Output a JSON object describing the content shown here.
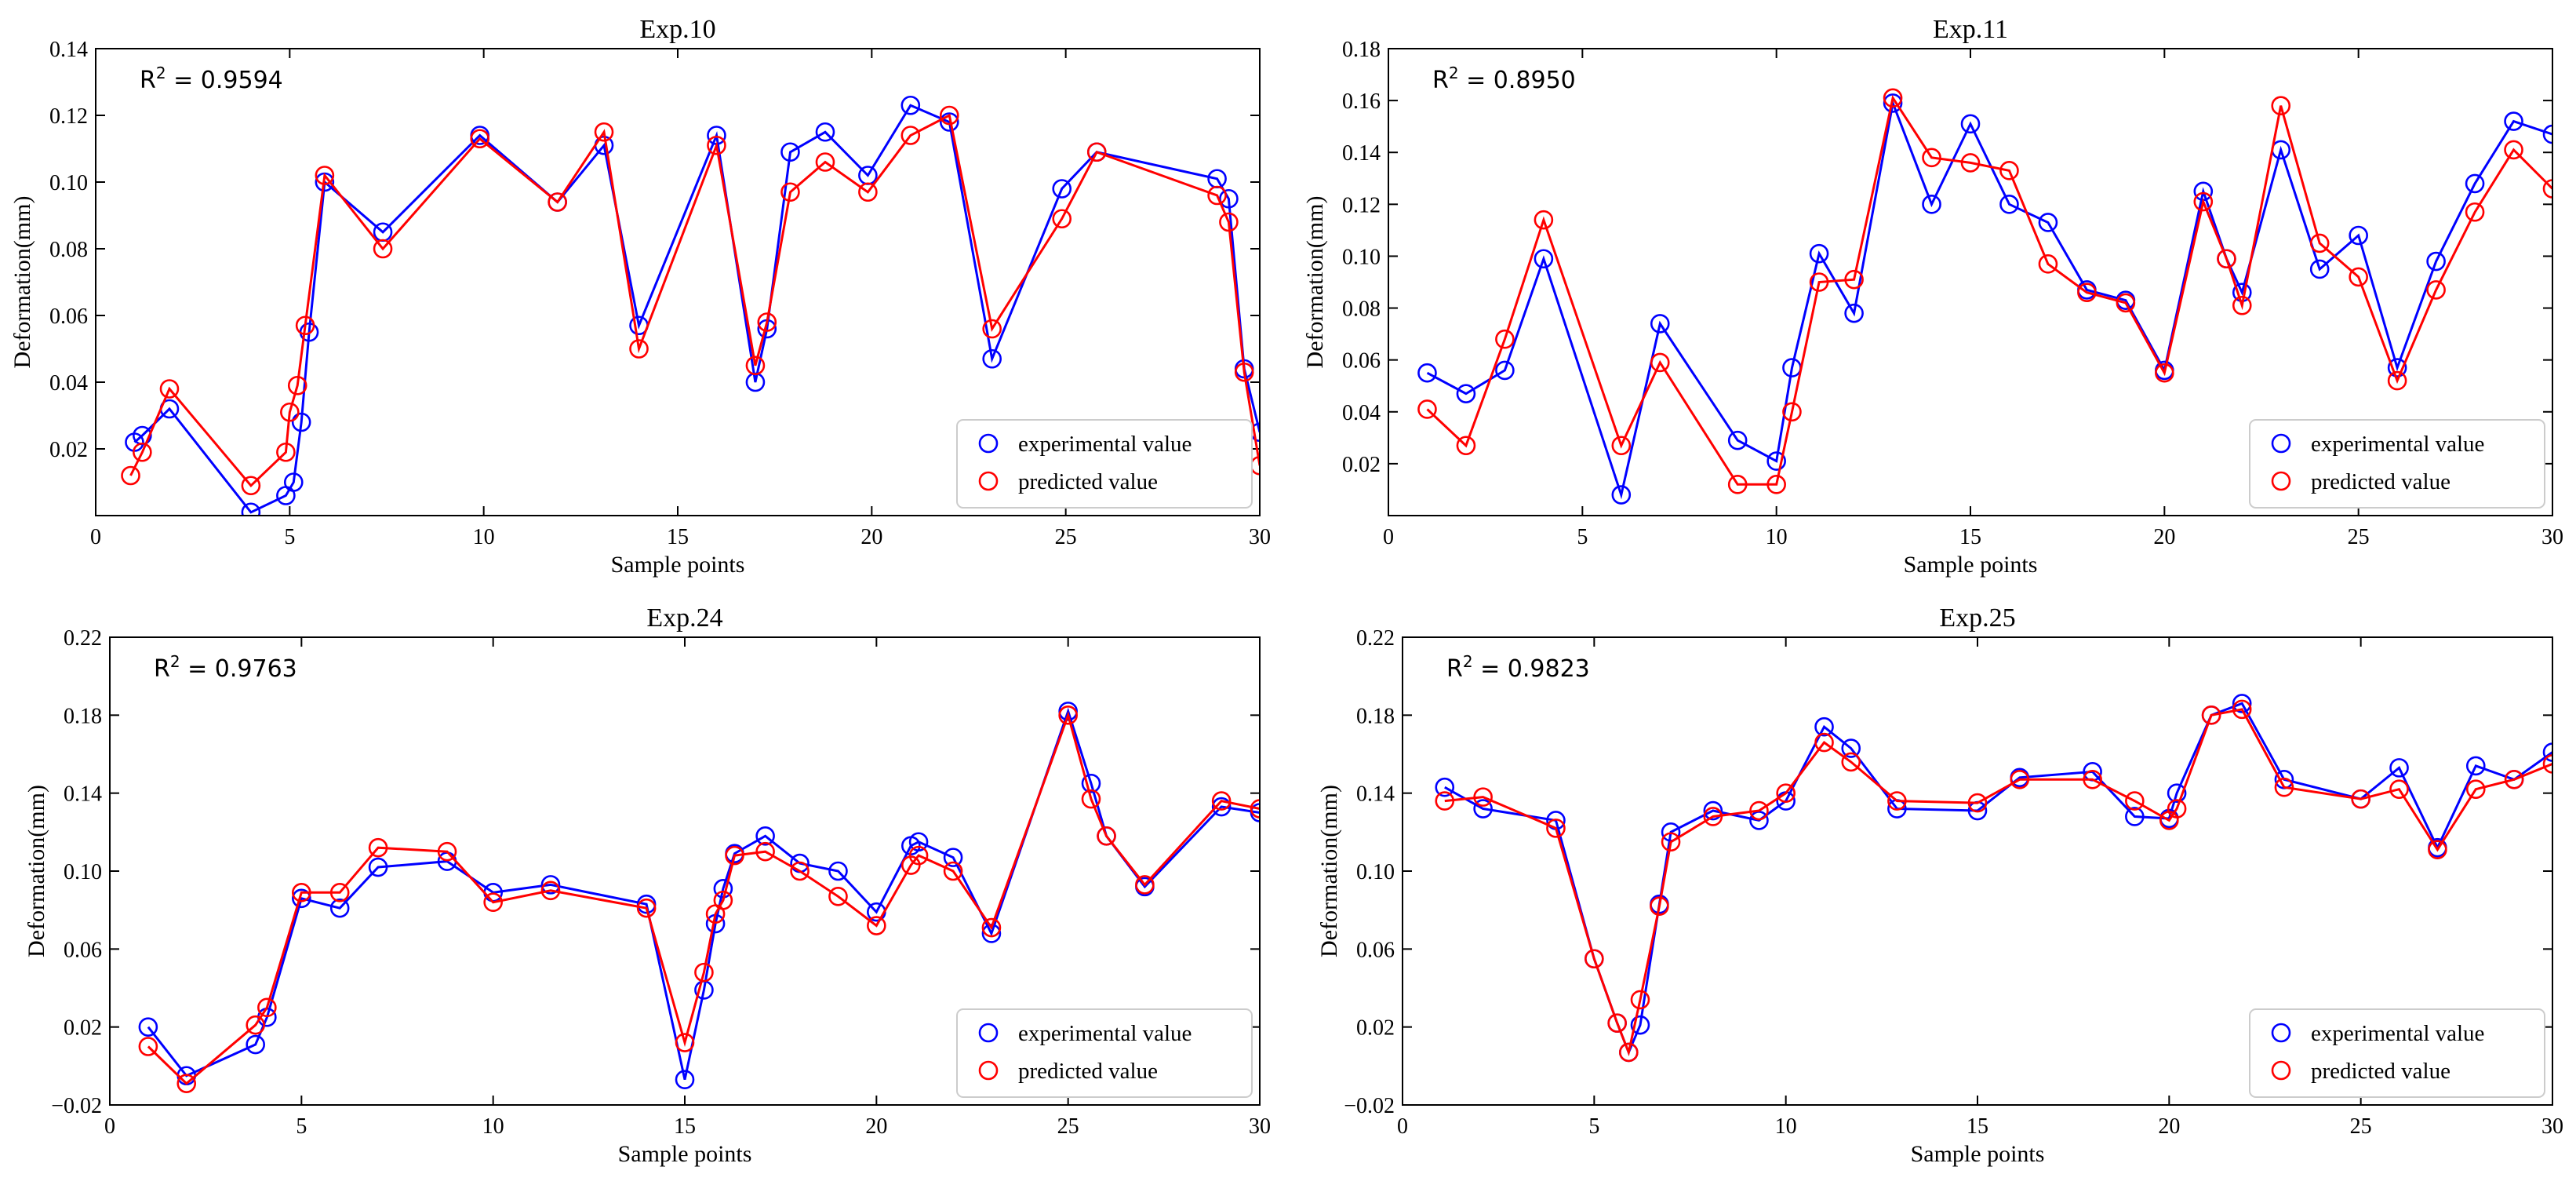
{
  "chart_data": [
    {
      "type": "line",
      "title": "Exp.10",
      "xlabel": "Sample points",
      "ylabel": "Deformation(mm)",
      "annotation_prefix": "R",
      "annotation_value": " = 0.9594",
      "xlim": [
        0,
        30
      ],
      "ylim": [
        0.0,
        0.14
      ],
      "xticks": [
        "0",
        "5",
        "10",
        "15",
        "20",
        "25",
        "30"
      ],
      "yticks": [
        "0.02",
        "0.04",
        "0.06",
        "0.08",
        "0.10",
        "0.12",
        "0.14"
      ],
      "legend_position": "bottom-right",
      "series": [
        {
          "name": "experimental value",
          "color": "#0000ff",
          "x": [
            1.0,
            1.2,
            1.9,
            4.0,
            4.9,
            5.1,
            5.3,
            5.5,
            5.9,
            7.4,
            9.9,
            11.9,
            13.1,
            14.0,
            16.0,
            17.0,
            17.3,
            17.9,
            18.8,
            19.9,
            21.0,
            22.0,
            23.1,
            24.9,
            25.8,
            28.9,
            29.2,
            29.6,
            30.0
          ],
          "y": [
            0.022,
            0.024,
            0.032,
            0.001,
            0.006,
            0.01,
            0.028,
            0.055,
            0.1,
            0.085,
            0.114,
            0.094,
            0.111,
            0.057,
            0.114,
            0.04,
            0.056,
            0.109,
            0.115,
            0.102,
            0.123,
            0.118,
            0.047,
            0.098,
            0.109,
            0.101,
            0.095,
            0.044,
            0.025
          ]
        },
        {
          "name": "predicted value",
          "color": "#ff0000",
          "x": [
            0.9,
            1.2,
            1.9,
            4.0,
            4.9,
            5.0,
            5.2,
            5.4,
            5.9,
            7.4,
            9.9,
            11.9,
            13.1,
            14.0,
            16.0,
            17.0,
            17.3,
            17.9,
            18.8,
            19.9,
            21.0,
            22.0,
            23.1,
            24.9,
            25.8,
            28.9,
            29.2,
            29.6,
            30.0
          ],
          "y": [
            0.012,
            0.019,
            0.038,
            0.009,
            0.019,
            0.031,
            0.039,
            0.057,
            0.102,
            0.08,
            0.113,
            0.094,
            0.115,
            0.05,
            0.111,
            0.045,
            0.058,
            0.097,
            0.106,
            0.097,
            0.114,
            0.12,
            0.056,
            0.089,
            0.109,
            0.096,
            0.088,
            0.043,
            0.015
          ]
        }
      ]
    },
    {
      "type": "line",
      "title": "Exp.11",
      "xlabel": "Sample points",
      "ylabel": "Deformation(mm)",
      "annotation_prefix": "R",
      "annotation_value": " = 0.8950",
      "xlim": [
        0,
        30
      ],
      "ylim": [
        0.0,
        0.18
      ],
      "xticks": [
        "0",
        "5",
        "10",
        "15",
        "20",
        "25",
        "30"
      ],
      "yticks": [
        "0.02",
        "0.04",
        "0.06",
        "0.08",
        "0.10",
        "0.12",
        "0.14",
        "0.16",
        "0.18"
      ],
      "legend_position": "bottom-right",
      "series": [
        {
          "name": "experimental value",
          "color": "#0000ff",
          "x": [
            1,
            2,
            3,
            4,
            6,
            7,
            9,
            10,
            10.4,
            11.1,
            12,
            13,
            14,
            15,
            16,
            17,
            18,
            19,
            20,
            21,
            21.6,
            22,
            23,
            24,
            25,
            26,
            27,
            28,
            29,
            30
          ],
          "y": [
            0.055,
            0.047,
            0.056,
            0.099,
            0.008,
            0.074,
            0.029,
            0.021,
            0.057,
            0.101,
            0.078,
            0.159,
            0.12,
            0.151,
            0.12,
            0.113,
            0.087,
            0.083,
            0.056,
            0.125,
            0.099,
            0.086,
            0.141,
            0.095,
            0.108,
            0.057,
            0.098,
            0.128,
            0.152,
            0.147
          ]
        },
        {
          "name": "predicted value",
          "color": "#ff0000",
          "x": [
            1,
            2,
            3,
            4,
            6,
            7,
            9,
            10,
            10.4,
            11.1,
            12,
            13,
            14,
            15,
            16,
            17,
            18,
            19,
            20,
            21,
            21.6,
            22,
            23,
            24,
            25,
            26,
            27,
            28,
            29,
            30
          ],
          "y": [
            0.041,
            0.027,
            0.068,
            0.114,
            0.027,
            0.059,
            0.012,
            0.012,
            0.04,
            0.09,
            0.091,
            0.161,
            0.138,
            0.136,
            0.133,
            0.097,
            0.086,
            0.082,
            0.055,
            0.121,
            0.099,
            0.081,
            0.158,
            0.105,
            0.092,
            0.052,
            0.087,
            0.117,
            0.141,
            0.126
          ]
        }
      ]
    },
    {
      "type": "line",
      "title": "Exp.24",
      "xlabel": "Sample points",
      "ylabel": "Deformation(mm)",
      "annotation_prefix": "R",
      "annotation_value": " = 0.9763",
      "xlim": [
        0,
        30
      ],
      "ylim": [
        -0.02,
        0.22
      ],
      "xticks": [
        "0",
        "5",
        "10",
        "15",
        "20",
        "25",
        "30"
      ],
      "yticks": [
        "−0.02",
        "0.02",
        "0.06",
        "0.10",
        "0.14",
        "0.18",
        "0.22"
      ],
      "legend_position": "bottom-right",
      "series": [
        {
          "name": "experimental value",
          "color": "#0000ff",
          "x": [
            1,
            2,
            3.8,
            4.1,
            5,
            6,
            7,
            8.8,
            10,
            11.5,
            14,
            15,
            15.5,
            15.8,
            16,
            16.3,
            17.1,
            18,
            19,
            20,
            20.9,
            21.1,
            22,
            23,
            25,
            25.6,
            26,
            27,
            29,
            30
          ],
          "y": [
            0.02,
            -0.005,
            0.011,
            0.025,
            0.086,
            0.081,
            0.102,
            0.105,
            0.089,
            0.093,
            0.083,
            -0.007,
            0.039,
            0.073,
            0.091,
            0.109,
            0.118,
            0.104,
            0.1,
            0.079,
            0.113,
            0.115,
            0.107,
            0.068,
            0.182,
            0.145,
            0.118,
            0.092,
            0.133,
            0.13
          ]
        },
        {
          "name": "predicted value",
          "color": "#ff0000",
          "x": [
            1,
            2,
            3.8,
            4.1,
            5,
            6,
            7,
            8.8,
            10,
            11.5,
            14,
            15,
            15.5,
            15.8,
            16,
            16.3,
            17.1,
            18,
            19,
            20,
            20.9,
            21.1,
            22,
            23,
            25,
            25.6,
            26,
            27,
            29,
            30
          ],
          "y": [
            0.01,
            -0.009,
            0.021,
            0.03,
            0.089,
            0.089,
            0.112,
            0.11,
            0.084,
            0.09,
            0.081,
            0.012,
            0.048,
            0.078,
            0.085,
            0.108,
            0.11,
            0.1,
            0.087,
            0.072,
            0.103,
            0.108,
            0.1,
            0.071,
            0.18,
            0.137,
            0.118,
            0.093,
            0.136,
            0.132
          ]
        }
      ]
    },
    {
      "type": "line",
      "title": "Exp.25",
      "xlabel": "Sample points",
      "ylabel": "Deformation(mm)",
      "annotation_prefix": "R",
      "annotation_value": " = 0.9823",
      "xlim": [
        0,
        30
      ],
      "ylim": [
        -0.02,
        0.22
      ],
      "xticks": [
        "0",
        "5",
        "10",
        "15",
        "20",
        "25",
        "30"
      ],
      "yticks": [
        "−0.02",
        "0.02",
        "0.06",
        "0.10",
        "0.14",
        "0.18",
        "0.22"
      ],
      "legend_position": "bottom-right",
      "series": [
        {
          "name": "experimental value",
          "color": "#0000ff",
          "x": [
            1.1,
            2.1,
            4,
            5,
            5.6,
            5.9,
            6.2,
            6.7,
            7,
            8.1,
            9.3,
            10,
            11,
            11.7,
            12.9,
            15,
            16.1,
            18,
            19.1,
            20,
            20.2,
            21.1,
            21.9,
            23,
            25,
            26,
            27,
            28,
            29,
            30
          ],
          "y": [
            0.143,
            0.132,
            0.126,
            0.055,
            0.022,
            0.007,
            0.021,
            0.083,
            0.12,
            0.131,
            0.126,
            0.136,
            0.174,
            0.163,
            0.132,
            0.131,
            0.148,
            0.151,
            0.128,
            0.127,
            0.14,
            0.18,
            0.186,
            0.147,
            0.137,
            0.153,
            0.112,
            0.154,
            0.147,
            0.161
          ]
        },
        {
          "name": "predicted value",
          "color": "#ff0000",
          "x": [
            1.1,
            2.1,
            4,
            5,
            5.6,
            5.9,
            6.2,
            6.7,
            7,
            8.1,
            9.3,
            10,
            11,
            11.7,
            12.9,
            15,
            16.1,
            18,
            19.1,
            20,
            20.2,
            21.1,
            21.9,
            23,
            25,
            26,
            27,
            28,
            29,
            30
          ],
          "y": [
            0.136,
            0.138,
            0.122,
            0.055,
            0.022,
            0.007,
            0.034,
            0.082,
            0.115,
            0.128,
            0.131,
            0.14,
            0.166,
            0.156,
            0.136,
            0.135,
            0.147,
            0.147,
            0.136,
            0.126,
            0.132,
            0.18,
            0.183,
            0.143,
            0.137,
            0.142,
            0.111,
            0.142,
            0.147,
            0.155
          ]
        }
      ]
    }
  ]
}
